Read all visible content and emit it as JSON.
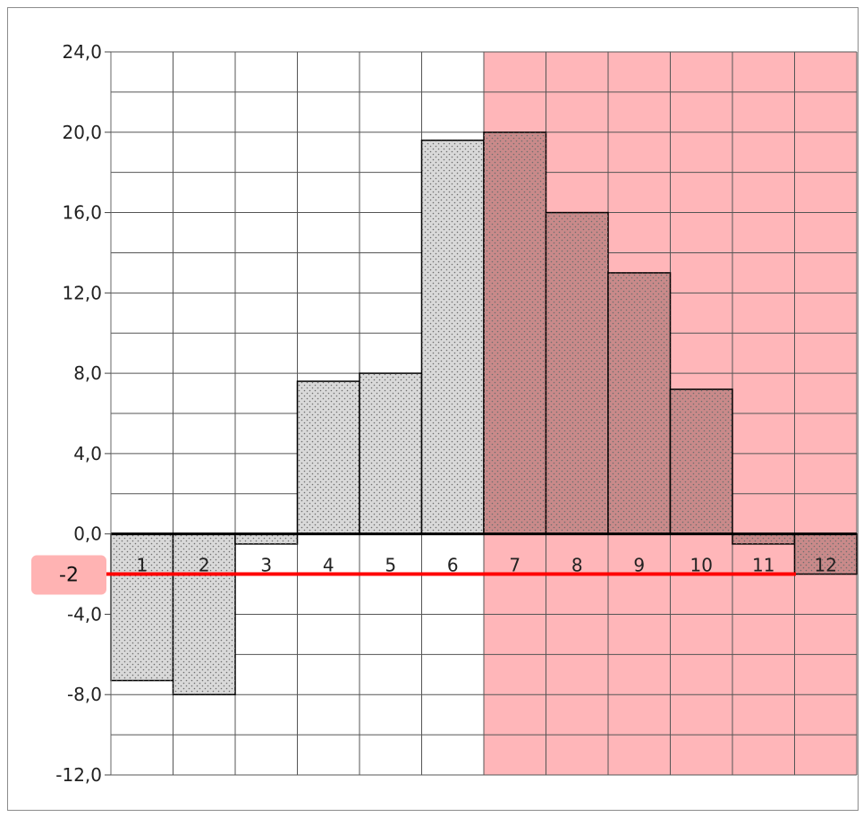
{
  "chart_data": {
    "type": "bar",
    "categories": [
      "1",
      "2",
      "3",
      "4",
      "5",
      "6",
      "7",
      "8",
      "9",
      "10",
      "11",
      "12"
    ],
    "values": [
      -7.3,
      -8.0,
      -0.5,
      7.6,
      8.0,
      19.6,
      20.0,
      16.0,
      13.0,
      7.2,
      -0.5,
      -2.0
    ],
    "ylim": [
      -12,
      24
    ],
    "y_ticks": [
      "24,0",
      "20,0",
      "16,0",
      "12,0",
      "8,0",
      "4,0",
      "0,0",
      "-4,0",
      "-8,0",
      "-12,0"
    ],
    "y_tick_values": [
      24,
      20,
      16,
      12,
      8,
      4,
      0,
      -4,
      -8,
      -12
    ],
    "minor_grid_step": 2,
    "grid": true,
    "highlight_range": {
      "from_category": "7",
      "to_category": "12"
    },
    "reference_line": {
      "value": -2,
      "label": "-2"
    },
    "colors": {
      "bar_fill": "#d9d9d9",
      "bar_fill_highlighted": "#c98a8a",
      "bar_stroke": "#000000",
      "highlight_band": "#ffb6b9",
      "grid": "#555555",
      "reference_line": "#ff0000",
      "callout_bg": "#ffb3b3"
    }
  }
}
